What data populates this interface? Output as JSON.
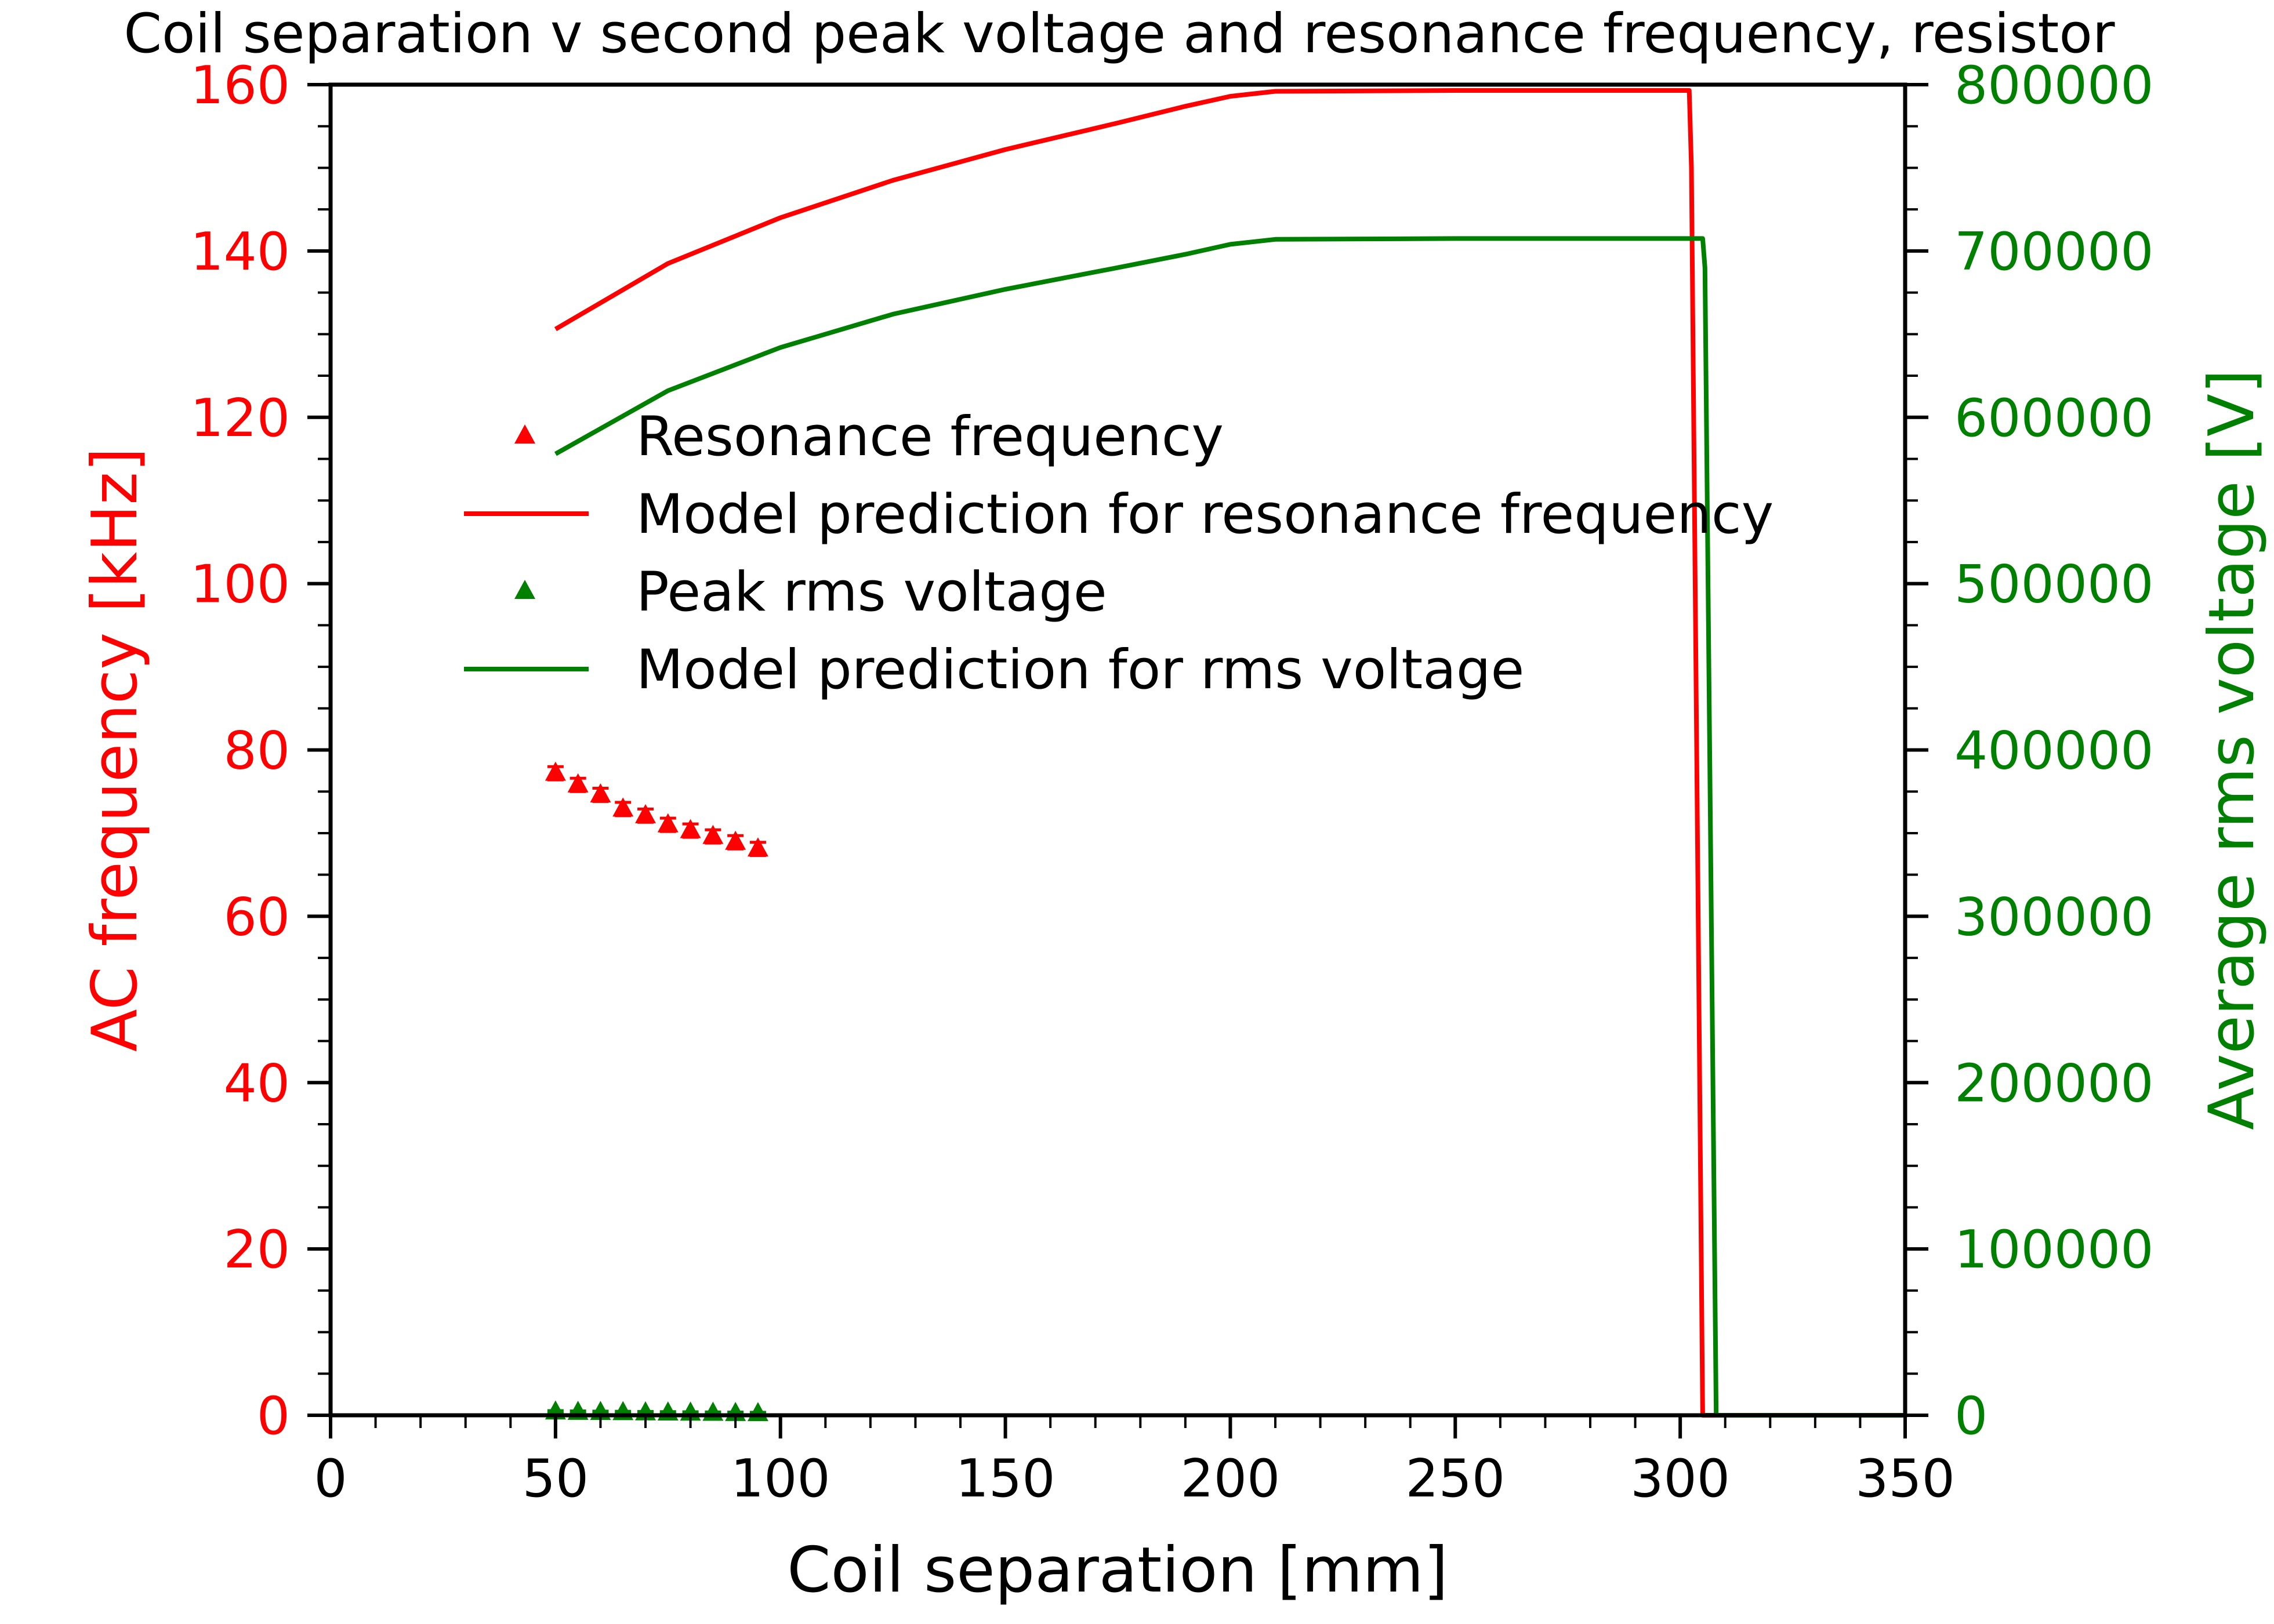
{
  "chart_data": {
    "type": "line",
    "title": "Coil separation v second peak voltage and resonance frequency, resistor",
    "xlabel": "Coil separation [mm]",
    "ylabel_left": "AC frequency [kHz]",
    "ylabel_right": "Average rms voltage [V]",
    "xlim": [
      0,
      350
    ],
    "ylim_left": [
      0,
      160
    ],
    "ylim_right": [
      0,
      800000
    ],
    "x_ticks": [
      "0",
      "50",
      "100",
      "150",
      "200",
      "250",
      "300",
      "350"
    ],
    "y_left_ticks": [
      "0",
      "20",
      "40",
      "60",
      "80",
      "100",
      "120",
      "140",
      "160"
    ],
    "y_right_ticks": [
      "0",
      "100000",
      "200000",
      "300000",
      "400000",
      "500000",
      "600000",
      "700000",
      "800000"
    ],
    "grid": false,
    "legend_position": "center-left",
    "colors": {
      "frequency": "#ff0000",
      "voltage": "#008000",
      "axis": "#000000"
    },
    "series": [
      {
        "name": "Resonance frequency",
        "kind": "scatter",
        "marker": "triangle",
        "axis": "left",
        "color": "#ff0000",
        "x": [
          50,
          55,
          60,
          65,
          70,
          75,
          80,
          85,
          90,
          95
        ],
        "y": [
          77.2,
          75.8,
          74.6,
          72.9,
          72.1,
          71.0,
          70.3,
          69.6,
          68.9,
          68.1
        ],
        "yerr": [
          0.8,
          0.8,
          0.8,
          0.8,
          0.8,
          0.8,
          0.8,
          0.8,
          0.8,
          0.8
        ]
      },
      {
        "name": "Model prediction for resonance frequency",
        "kind": "line",
        "axis": "left",
        "color": "#ff0000",
        "x": [
          50,
          75,
          100,
          125,
          150,
          175,
          190,
          200,
          210,
          250,
          302,
          302.5,
          305,
          350
        ],
        "y": [
          130.6,
          138.5,
          144.0,
          148.5,
          152.2,
          155.4,
          157.4,
          158.6,
          159.2,
          159.3,
          159.3,
          150,
          0,
          0
        ]
      },
      {
        "name": "Peak rms voltage",
        "kind": "scatter",
        "marker": "triangle",
        "axis": "right",
        "color": "#008000",
        "x": [
          50,
          55,
          60,
          65,
          70,
          75,
          80,
          85,
          90,
          95
        ],
        "y": [
          2000,
          1800,
          1700,
          1600,
          1500,
          1400,
          1300,
          1200,
          1100,
          1000
        ],
        "yerr": [
          800,
          800,
          800,
          800,
          800,
          800,
          800,
          800,
          800,
          800
        ]
      },
      {
        "name": "Model prediction for rms voltage",
        "kind": "line",
        "axis": "right",
        "color": "#008000",
        "x": [
          50,
          75,
          100,
          125,
          150,
          175,
          190,
          200,
          210,
          250,
          305,
          305.5,
          308,
          350
        ],
        "y": [
          578000,
          616000,
          642000,
          662000,
          677000,
          690000,
          698000,
          704000,
          707000,
          707500,
          707500,
          690000,
          0,
          0
        ]
      }
    ]
  }
}
